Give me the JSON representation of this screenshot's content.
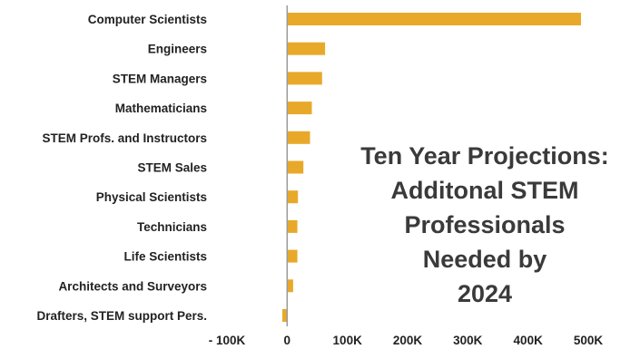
{
  "chart_data": {
    "type": "bar",
    "orientation": "horizontal",
    "title_lines": [
      "Ten Year Projections:",
      "Additonal STEM",
      "Professionals",
      "Needed by",
      "2024"
    ],
    "categories": [
      "Computer Scientists",
      "Engineers",
      "STEM Managers",
      "Mathematicians",
      "STEM Profs. and Instructors",
      "STEM Sales",
      "Physical Scientists",
      "Technicians",
      "Life Scientists",
      "Architects and Surveyors",
      "Drafters, STEM support Pers."
    ],
    "values": [
      488000,
      63000,
      58000,
      41000,
      38000,
      27000,
      18000,
      17000,
      17000,
      10000,
      -8000
    ],
    "xlim": [
      -100000,
      500000
    ],
    "xticks": [
      -100000,
      0,
      100000,
      200000,
      300000,
      400000,
      500000
    ],
    "xtick_labels": [
      "- 100K",
      "0",
      "100K",
      "200K",
      "300K",
      "400K",
      "500K"
    ],
    "bar_color": "#e8a92a",
    "grid": false,
    "legend": "none"
  }
}
